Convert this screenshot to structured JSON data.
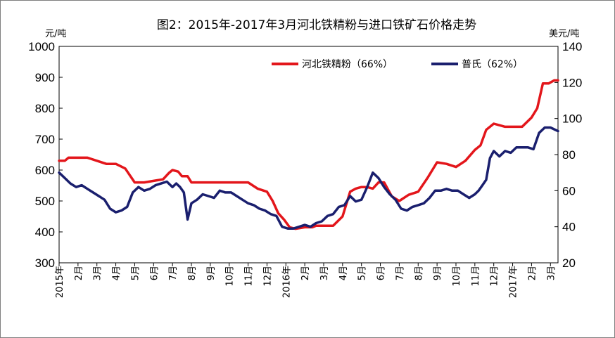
{
  "chart_data": {
    "type": "line",
    "title": "图2：2015年-2017年3月河北铁精粉与进口铁矿石价格走势",
    "left_unit": "元/吨",
    "right_unit": "美元/吨",
    "left_ylim": [
      300,
      1000
    ],
    "left_ticks": [
      "300",
      "400",
      "500",
      "600",
      "700",
      "800",
      "900",
      "1000"
    ],
    "right_ylim": [
      20,
      140
    ],
    "right_ticks": [
      "20",
      "40",
      "60",
      "80",
      "100",
      "120",
      "140"
    ],
    "x_labels": [
      "2015年",
      "2月",
      "3月",
      "4月",
      "5月",
      "6月",
      "7月",
      "8月",
      "9月",
      "10月",
      "11月",
      "12月",
      "2016年",
      "2月",
      "3月",
      "4月",
      "5月",
      "6月",
      "7月",
      "8月",
      "9月",
      "10月",
      "11月",
      "12月",
      "2017年",
      "2月",
      "3月"
    ],
    "x_label_positions": [
      0,
      1,
      2,
      3,
      4,
      5,
      6,
      7,
      8,
      9,
      10,
      11,
      12,
      13,
      14,
      15,
      16,
      17,
      18,
      19,
      20,
      21,
      22,
      23,
      24,
      25,
      26
    ],
    "x_range": [
      0,
      26.4
    ],
    "legend_position": "top-right",
    "grid": false,
    "series": [
      {
        "name": "河北铁精粉（66%）",
        "axis": "left",
        "color": "#e3161b",
        "x": [
          0,
          0.3,
          0.5,
          1,
          1.5,
          2,
          2.5,
          3,
          3.5,
          4,
          4.2,
          4.5,
          5,
          5.5,
          5.8,
          6,
          6.3,
          6.5,
          6.8,
          7,
          8,
          9,
          10,
          10.5,
          11,
          11.3,
          11.6,
          11.9,
          12.2,
          12.5,
          13,
          13.4,
          13.6,
          14,
          14.5,
          15,
          15.4,
          15.7,
          16,
          16.3,
          16.6,
          16.9,
          17.2,
          17.6,
          18,
          18.5,
          19,
          19.5,
          20,
          20.5,
          21,
          21.5,
          22,
          22.3,
          22.6,
          23,
          23.3,
          23.6,
          24,
          24.5,
          25,
          25.3,
          25.6,
          25.9,
          26.2,
          26.4
        ],
        "values": [
          630,
          630,
          640,
          640,
          640,
          630,
          620,
          620,
          605,
          560,
          560,
          560,
          565,
          570,
          590,
          600,
          595,
          580,
          580,
          560,
          560,
          560,
          560,
          540,
          530,
          500,
          460,
          440,
          415,
          410,
          415,
          415,
          420,
          420,
          420,
          450,
          530,
          540,
          545,
          545,
          540,
          560,
          560,
          515,
          500,
          520,
          530,
          575,
          625,
          620,
          610,
          630,
          665,
          680,
          730,
          750,
          745,
          740,
          740,
          740,
          770,
          800,
          880,
          880,
          890,
          890
        ]
      },
      {
        "name": "普氏（62%）",
        "axis": "right",
        "color": "#1a1f6e",
        "x": [
          0,
          0.3,
          0.6,
          0.9,
          1.2,
          1.5,
          1.8,
          2.1,
          2.4,
          2.7,
          3,
          3.3,
          3.6,
          3.9,
          4.2,
          4.5,
          4.8,
          5.1,
          5.4,
          5.7,
          6,
          6.2,
          6.4,
          6.6,
          6.8,
          7,
          7.3,
          7.6,
          7.9,
          8.2,
          8.5,
          8.8,
          9.1,
          9.4,
          9.7,
          10,
          10.3,
          10.6,
          10.9,
          11.2,
          11.5,
          11.8,
          12.1,
          12.4,
          12.7,
          13,
          13.3,
          13.6,
          13.9,
          14.2,
          14.5,
          14.8,
          15.1,
          15.4,
          15.7,
          16,
          16.3,
          16.6,
          16.9,
          17.2,
          17.5,
          17.8,
          18.1,
          18.4,
          18.7,
          19,
          19.3,
          19.6,
          19.9,
          20.2,
          20.5,
          20.8,
          21.1,
          21.4,
          21.7,
          22,
          22.2,
          22.4,
          22.6,
          22.8,
          23,
          23.3,
          23.6,
          23.9,
          24.2,
          24.5,
          24.8,
          25.1,
          25.4,
          25.7,
          26,
          26.4
        ],
        "values": [
          70,
          67,
          64,
          62,
          63,
          61,
          59,
          57,
          55,
          50,
          48,
          49,
          51,
          59,
          62,
          60,
          61,
          63,
          64,
          65,
          62,
          64,
          62,
          59,
          44,
          53,
          55,
          58,
          57,
          56,
          60,
          59,
          59,
          57,
          55,
          53,
          52,
          50,
          49,
          47,
          46,
          40,
          39,
          39,
          40,
          41,
          40,
          42,
          43,
          46,
          47,
          51,
          52,
          57,
          54,
          55,
          62,
          70,
          67,
          62,
          58,
          55,
          50,
          49,
          51,
          52,
          53,
          56,
          60,
          60,
          61,
          60,
          60,
          58,
          56,
          58,
          60,
          63,
          66,
          78,
          82,
          79,
          82,
          81,
          84,
          84,
          84,
          83,
          92,
          95,
          95,
          93
        ]
      }
    ]
  }
}
